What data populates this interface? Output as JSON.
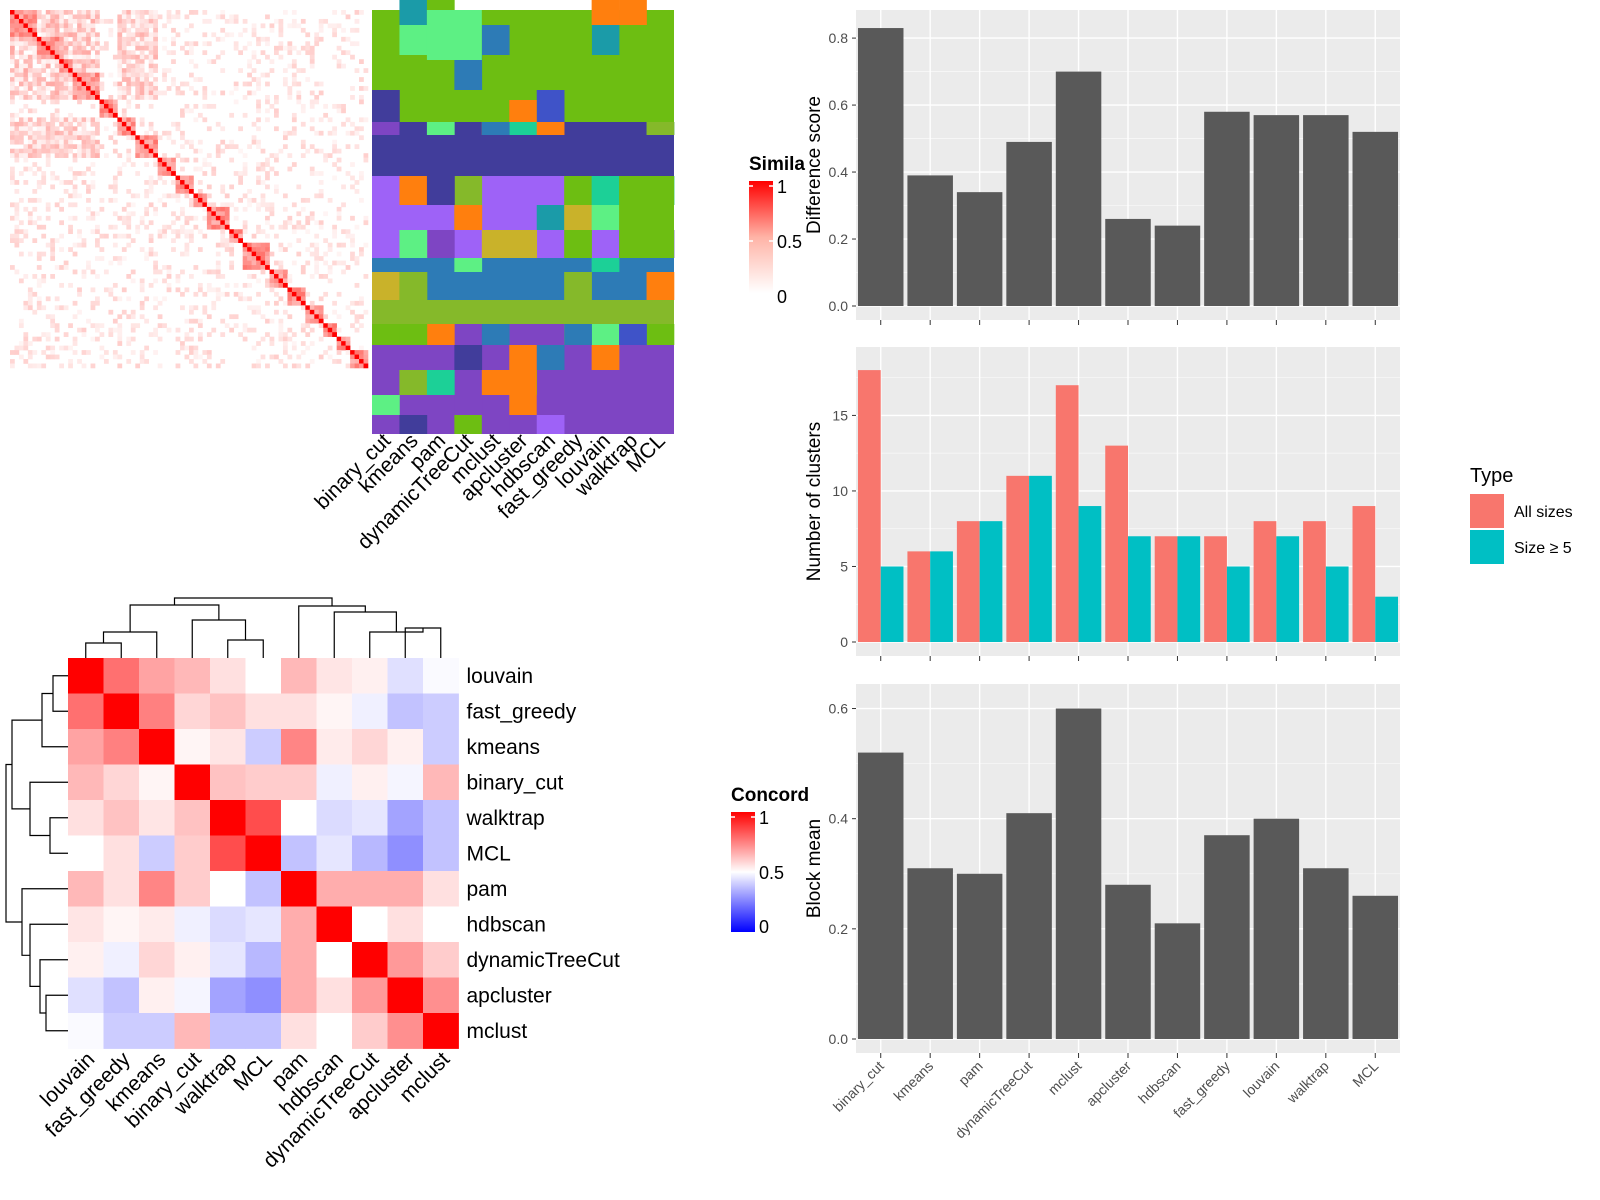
{
  "methods": [
    "binary_cut",
    "kmeans",
    "pam",
    "dynamicTreeCut",
    "mclust",
    "apcluster",
    "hdbscan",
    "fast_greedy",
    "louvain",
    "walktrap",
    "MCL"
  ],
  "heatmap_order": [
    "louvain",
    "fast_greedy",
    "kmeans",
    "binary_cut",
    "walktrap",
    "MCL",
    "pam",
    "hdbscan",
    "dynamicTreeCut",
    "apcluster",
    "mclust"
  ],
  "similarity_legend": {
    "title": "Similarity",
    "ticks": [
      "1",
      "0.5",
      "0"
    ]
  },
  "concordance_legend": {
    "title": "Concordance",
    "ticks": [
      "1",
      "0.5",
      "0"
    ]
  },
  "type_legend": {
    "title": "Type",
    "items": [
      "All sizes",
      "Size ≥ 5"
    ],
    "colors": [
      "#F8766D",
      "#00BFC4"
    ]
  },
  "colors": {
    "panel": "#EBEBEB",
    "bar": "#595959",
    "grid": "#FFFFFF",
    "red": "#FF0000",
    "blue": "#0000FF"
  },
  "chart_data": [
    {
      "type": "bar",
      "name": "difference_score",
      "categories": [
        "binary_cut",
        "kmeans",
        "pam",
        "dynamicTreeCut",
        "mclust",
        "apcluster",
        "hdbscan",
        "fast_greedy",
        "louvain",
        "walktrap",
        "MCL"
      ],
      "values": [
        0.83,
        0.39,
        0.34,
        0.49,
        0.7,
        0.26,
        0.24,
        0.58,
        0.57,
        0.57,
        0.52
      ],
      "ylabel": "Difference score",
      "ylim": [
        0,
        0.86
      ],
      "yticks": [
        "0.0",
        "0.2",
        "0.4",
        "0.6",
        "0.8"
      ]
    },
    {
      "type": "bar",
      "name": "number_of_clusters",
      "categories": [
        "binary_cut",
        "kmeans",
        "pam",
        "dynamicTreeCut",
        "mclust",
        "apcluster",
        "hdbscan",
        "fast_greedy",
        "louvain",
        "walktrap",
        "MCL"
      ],
      "series": [
        {
          "name": "All sizes",
          "values": [
            18,
            6,
            8,
            11,
            17,
            13,
            7,
            7,
            8,
            8,
            9
          ]
        },
        {
          "name": "Size ≥ 5",
          "values": [
            5,
            6,
            8,
            11,
            9,
            7,
            7,
            5,
            7,
            5,
            3
          ]
        }
      ],
      "ylabel": "Number of clusters",
      "ylim": [
        0,
        19
      ],
      "yticks": [
        "0",
        "5",
        "10",
        "15"
      ]
    },
    {
      "type": "bar",
      "name": "block_mean",
      "categories": [
        "binary_cut",
        "kmeans",
        "pam",
        "dynamicTreeCut",
        "mclust",
        "apcluster",
        "hdbscan",
        "fast_greedy",
        "louvain",
        "walktrap",
        "MCL"
      ],
      "values": [
        0.52,
        0.31,
        0.3,
        0.41,
        0.6,
        0.28,
        0.21,
        0.37,
        0.4,
        0.31,
        0.26
      ],
      "ylabel": "Block mean",
      "ylim": [
        0,
        0.63
      ],
      "yticks": [
        "0.0",
        "0.2",
        "0.4",
        "0.6"
      ]
    },
    {
      "type": "heatmap",
      "name": "concordance",
      "rows": [
        "louvain",
        "fast_greedy",
        "kmeans",
        "binary_cut",
        "walktrap",
        "MCL",
        "pam",
        "hdbscan",
        "dynamicTreeCut",
        "apcluster",
        "mclust"
      ],
      "columns": [
        "louvain",
        "fast_greedy",
        "kmeans",
        "binary_cut",
        "walktrap",
        "MCL",
        "pam",
        "hdbscan",
        "dynamicTreeCut",
        "apcluster",
        "mclust"
      ],
      "values": [
        [
          1.0,
          0.78,
          0.68,
          0.64,
          0.56,
          0.5,
          0.64,
          0.55,
          0.53,
          0.44,
          0.49
        ],
        [
          0.78,
          1.0,
          0.75,
          0.58,
          0.62,
          0.56,
          0.56,
          0.52,
          0.47,
          0.38,
          0.4
        ],
        [
          0.68,
          0.75,
          1.0,
          0.52,
          0.55,
          0.4,
          0.74,
          0.54,
          0.58,
          0.53,
          0.4
        ],
        [
          0.64,
          0.58,
          0.52,
          1.0,
          0.62,
          0.6,
          0.6,
          0.47,
          0.53,
          0.48,
          0.64
        ],
        [
          0.56,
          0.62,
          0.55,
          0.62,
          1.0,
          0.85,
          0.5,
          0.43,
          0.45,
          0.32,
          0.38
        ],
        [
          0.5,
          0.56,
          0.4,
          0.6,
          0.85,
          1.0,
          0.38,
          0.45,
          0.36,
          0.28,
          0.38
        ],
        [
          0.64,
          0.56,
          0.74,
          0.6,
          0.5,
          0.38,
          1.0,
          0.66,
          0.66,
          0.66,
          0.56
        ],
        [
          0.55,
          0.52,
          0.54,
          0.47,
          0.43,
          0.45,
          0.66,
          1.0,
          0.5,
          0.56,
          0.5
        ],
        [
          0.53,
          0.47,
          0.58,
          0.53,
          0.45,
          0.36,
          0.66,
          0.5,
          1.0,
          0.7,
          0.6
        ],
        [
          0.44,
          0.38,
          0.53,
          0.48,
          0.32,
          0.28,
          0.66,
          0.56,
          0.7,
          1.0,
          0.72
        ],
        [
          0.49,
          0.4,
          0.4,
          0.64,
          0.38,
          0.38,
          0.56,
          0.5,
          0.6,
          0.72,
          1.0
        ]
      ]
    }
  ]
}
